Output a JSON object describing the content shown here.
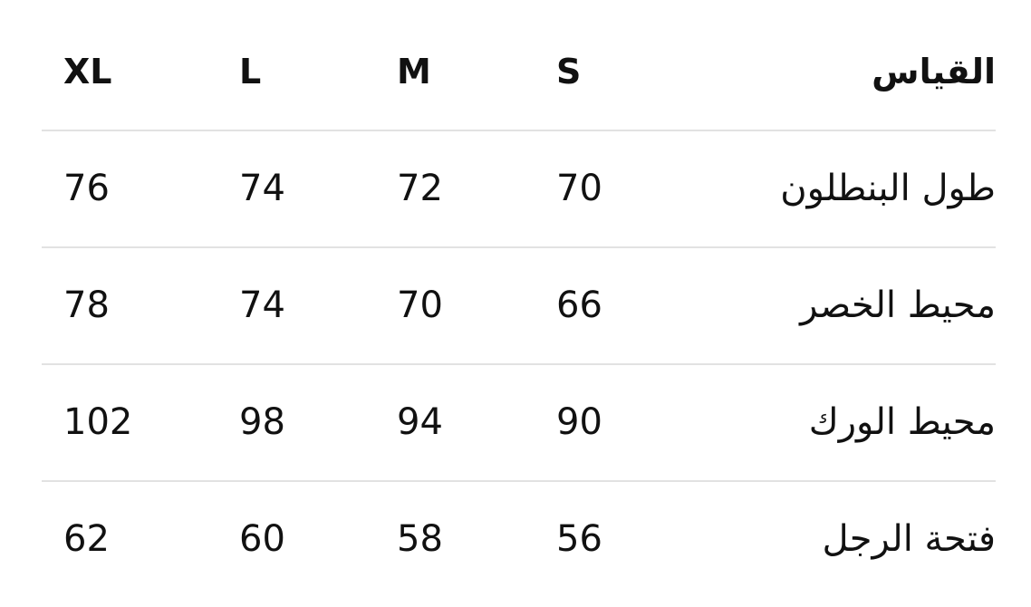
{
  "table": {
    "header": {
      "label": "القياس",
      "sizes": [
        "XL",
        "L",
        "M",
        "S"
      ]
    },
    "rows": [
      {
        "label": "طول البنطلون",
        "values": [
          "76",
          "74",
          "72",
          "70"
        ]
      },
      {
        "label": "محيط الخصر",
        "values": [
          "78",
          "74",
          "70",
          "66"
        ]
      },
      {
        "label": "محيط الورك",
        "values": [
          "102",
          "98",
          "94",
          "90"
        ]
      },
      {
        "label": "فتحة الرجل",
        "values": [
          "62",
          "60",
          "58",
          "56"
        ]
      }
    ]
  }
}
